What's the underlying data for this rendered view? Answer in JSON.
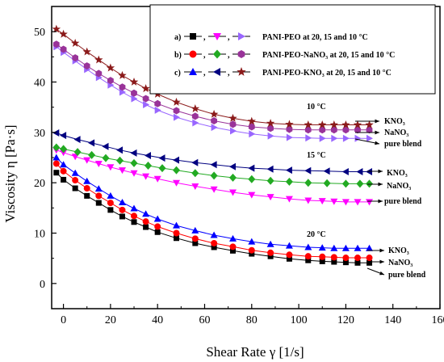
{
  "chart_data": {
    "type": "scatter",
    "xlabel": "Shear Rate γ [1/s]",
    "ylabel": "Viscosity η [Pa·s]",
    "xlim": [
      -5,
      160
    ],
    "ylim": [
      -5,
      55
    ],
    "xticks": [
      "0",
      "20",
      "40",
      "60",
      "80",
      "100",
      "120",
      "140",
      "160"
    ],
    "yticks": [
      "0",
      "10",
      "20",
      "30",
      "40",
      "50"
    ],
    "grid": false,
    "legend_position": "top-right",
    "legend": [
      {
        "prefix": "a)",
        "text": "PANI-PEO at 20, 15 and 10 °C",
        "markers": [
          "square",
          "triangle-down",
          "triangle-right"
        ],
        "colors": [
          "#000000",
          "#ff00ff",
          "#9966ff"
        ]
      },
      {
        "prefix": "b)",
        "text": "PANI-PEO-NaNO₃ at 20, 15 and 10 °C",
        "markers": [
          "circle",
          "diamond",
          "hexagon"
        ],
        "colors": [
          "#ff0000",
          "#22aa22",
          "#993399"
        ]
      },
      {
        "prefix": "c)",
        "text": "PANI-PEO-KNO₃ at 20, 15 and 10 °C",
        "markers": [
          "triangle-up",
          "triangle-left",
          "star"
        ],
        "colors": [
          "#0000ff",
          "#000080",
          "#8b1a1a"
        ]
      }
    ],
    "annotations": {
      "temp_10": "10 °C",
      "temp_15": "15 °C",
      "temp_20": "20 °C",
      "kno3": "KNO₃",
      "nano3": "NaNO₃",
      "pure": "pure blend"
    },
    "series": [
      {
        "name": "PANI-PEO 20 °C",
        "marker": "square",
        "color": "#000000",
        "x": [
          -3,
          0,
          5,
          10,
          15,
          20,
          25,
          30,
          35,
          40,
          48,
          56,
          64,
          72,
          80,
          88,
          96,
          104,
          110,
          115,
          120,
          125,
          130
        ],
        "y": [
          22.0,
          20.6,
          18.9,
          17.4,
          16.0,
          14.6,
          13.3,
          12.2,
          11.2,
          10.2,
          9.0,
          8.0,
          7.2,
          6.5,
          5.9,
          5.4,
          4.9,
          4.6,
          4.4,
          4.3,
          4.2,
          4.1,
          4.1
        ]
      },
      {
        "name": "PANI-PEO-NaNO₃ 20 °C",
        "marker": "circle",
        "color": "#ff0000",
        "x": [
          -3,
          0,
          5,
          10,
          15,
          20,
          25,
          30,
          35,
          40,
          48,
          56,
          64,
          72,
          80,
          88,
          96,
          104,
          110,
          115,
          120,
          125,
          130
        ],
        "y": [
          23.8,
          22.3,
          20.5,
          18.9,
          17.4,
          16.0,
          14.6,
          13.4,
          12.3,
          11.3,
          10.0,
          8.9,
          8.0,
          7.3,
          6.6,
          6.1,
          5.7,
          5.4,
          5.3,
          5.2,
          5.1,
          5.1,
          5.1
        ]
      },
      {
        "name": "PANI-PEO-KNO₃ 20 °C",
        "marker": "triangle-up",
        "color": "#0000ff",
        "x": [
          -3,
          0,
          5,
          10,
          15,
          20,
          25,
          30,
          35,
          40,
          48,
          56,
          64,
          72,
          80,
          88,
          96,
          104,
          110,
          115,
          120,
          125,
          130
        ],
        "y": [
          25.0,
          23.6,
          21.9,
          20.3,
          18.8,
          17.4,
          16.1,
          14.9,
          13.8,
          12.8,
          11.5,
          10.5,
          9.6,
          8.9,
          8.3,
          7.8,
          7.5,
          7.2,
          7.1,
          7.0,
          7.0,
          7.0,
          7.0
        ]
      },
      {
        "name": "PANI-PEO 15 °C",
        "marker": "triangle-down",
        "color": "#ff00ff",
        "x": [
          -3,
          0,
          5,
          10,
          15,
          20,
          25,
          30,
          35,
          40,
          48,
          56,
          64,
          72,
          80,
          88,
          96,
          104,
          110,
          115,
          120,
          125,
          130
        ],
        "y": [
          26.5,
          26.0,
          25.2,
          24.5,
          23.8,
          23.1,
          22.5,
          21.9,
          21.3,
          20.8,
          20.0,
          19.3,
          18.7,
          18.1,
          17.6,
          17.2,
          16.8,
          16.5,
          16.4,
          16.3,
          16.2,
          16.2,
          16.2
        ]
      },
      {
        "name": "PANI-PEO-NaNO₃ 15 °C",
        "marker": "diamond",
        "color": "#22aa22",
        "x": [
          -3,
          0,
          6,
          12,
          18,
          24,
          30,
          36,
          42,
          48,
          56,
          64,
          72,
          80,
          88,
          96,
          104,
          112,
          120,
          126,
          130
        ],
        "y": [
          27.0,
          26.7,
          26.1,
          25.5,
          24.9,
          24.4,
          23.9,
          23.4,
          22.9,
          22.5,
          21.9,
          21.4,
          21.0,
          20.7,
          20.4,
          20.2,
          20.0,
          19.9,
          19.8,
          19.8,
          19.8
        ]
      },
      {
        "name": "PANI-PEO-KNO₃ 15 °C",
        "marker": "triangle-left",
        "color": "#000080",
        "x": [
          -3,
          0,
          6,
          12,
          18,
          24,
          30,
          36,
          42,
          48,
          56,
          64,
          72,
          80,
          88,
          96,
          104,
          112,
          120,
          126,
          130
        ],
        "y": [
          29.9,
          29.4,
          28.6,
          27.9,
          27.2,
          26.5,
          25.9,
          25.4,
          24.9,
          24.5,
          24.0,
          23.6,
          23.2,
          22.9,
          22.7,
          22.5,
          22.4,
          22.3,
          22.2,
          22.2,
          22.2
        ]
      },
      {
        "name": "PANI-PEO 10 °C",
        "marker": "triangle-right",
        "color": "#9966ff",
        "x": [
          -3,
          0,
          5,
          10,
          15,
          20,
          25,
          30,
          35,
          40,
          48,
          56,
          64,
          72,
          80,
          88,
          96,
          104,
          110,
          115,
          120,
          125,
          130
        ],
        "y": [
          47.0,
          45.9,
          44.2,
          42.5,
          40.9,
          39.4,
          38.0,
          36.7,
          35.5,
          34.4,
          33.0,
          31.9,
          31.0,
          30.3,
          29.7,
          29.3,
          29.0,
          28.9,
          28.8,
          28.8,
          28.8,
          28.8,
          28.8
        ]
      },
      {
        "name": "PANI-PEO-NaNO₃ 10 °C",
        "marker": "hexagon",
        "color": "#993399",
        "x": [
          -3,
          0,
          5,
          10,
          15,
          20,
          25,
          30,
          35,
          40,
          48,
          56,
          64,
          72,
          80,
          88,
          96,
          104,
          110,
          115,
          120,
          125,
          130
        ],
        "y": [
          47.5,
          46.5,
          44.8,
          43.2,
          41.7,
          40.3,
          39.0,
          37.8,
          36.7,
          35.7,
          34.3,
          33.2,
          32.3,
          31.6,
          31.1,
          30.8,
          30.6,
          30.5,
          30.5,
          30.5,
          30.5,
          30.5,
          30.5
        ]
      },
      {
        "name": "PANI-PEO-KNO₃ 10 °C",
        "marker": "star",
        "color": "#8b1a1a",
        "x": [
          -3,
          0,
          5,
          10,
          15,
          20,
          25,
          30,
          35,
          40,
          48,
          56,
          64,
          72,
          80,
          88,
          96,
          104,
          110,
          115,
          120,
          125,
          130
        ],
        "y": [
          50.5,
          49.5,
          47.7,
          46.0,
          44.4,
          42.8,
          41.3,
          40.0,
          38.7,
          37.6,
          36.0,
          34.7,
          33.6,
          32.8,
          32.2,
          31.8,
          31.6,
          31.5,
          31.5,
          31.5,
          31.5,
          31.5,
          31.5
        ]
      }
    ]
  }
}
